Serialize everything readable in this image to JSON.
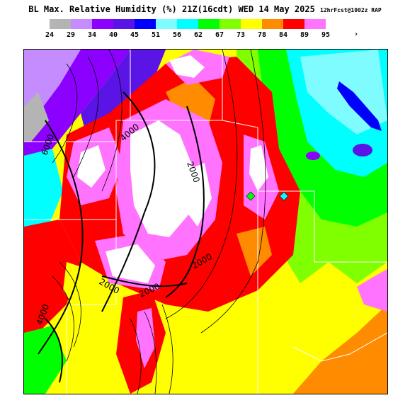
{
  "title": {
    "main": "BL Max. Relative Humidity (%) 21Z(16cdt) WED 14 May 2025",
    "run": "12hrFcst@1002z RAP"
  },
  "legend": {
    "items": [
      {
        "label": "24",
        "color": "#b4b4b4"
      },
      {
        "label": "29",
        "color": "#c48cff"
      },
      {
        "label": "34",
        "color": "#8c00ff"
      },
      {
        "label": "40",
        "color": "#5a14e6"
      },
      {
        "label": "45",
        "color": "#0000ff"
      },
      {
        "label": "51",
        "color": "#7ffcff"
      },
      {
        "label": "56",
        "color": "#00ffff"
      },
      {
        "label": "62",
        "color": "#00ff00"
      },
      {
        "label": "67",
        "color": "#7fff00"
      },
      {
        "label": "73",
        "color": "#ffff00"
      },
      {
        "label": "78",
        "color": "#ff8c00"
      },
      {
        "label": "84",
        "color": "#ff0000"
      },
      {
        "label": "89",
        "color": "#ff73ff"
      },
      {
        "label": "95",
        "color": "#ffffff"
      }
    ],
    "more": "›"
  },
  "contours": {
    "labels": [
      "6000",
      "4000",
      "2000",
      "2000",
      "2000",
      "2000",
      "4000"
    ]
  }
}
